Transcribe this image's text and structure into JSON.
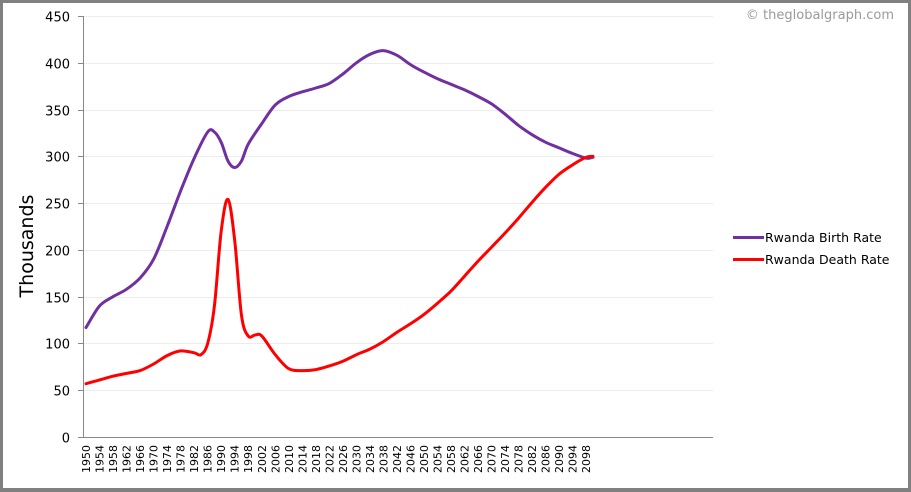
{
  "copyright": "© theglobalgraph.com",
  "chart_data": {
    "type": "line",
    "title": "",
    "xlabel": "",
    "ylabel": "Thousands",
    "ylim": [
      0,
      450
    ],
    "y_ticks": [
      0,
      50,
      100,
      150,
      200,
      250,
      300,
      350,
      400,
      450
    ],
    "x_ticks": [
      "1950",
      "1954",
      "1958",
      "1962",
      "1966",
      "1970",
      "1974",
      "1978",
      "1982",
      "1986",
      "1990",
      "1994",
      "1998",
      "2002",
      "2006",
      "2010",
      "2014",
      "2018",
      "2022",
      "2026",
      "2030",
      "2034",
      "2038",
      "2042",
      "2046",
      "2050",
      "2054",
      "2058",
      "2062",
      "2066",
      "2070",
      "2074",
      "2078",
      "2082",
      "2086",
      "2090",
      "2094",
      "2098"
    ],
    "grid": true,
    "legend_position": "right",
    "series": [
      {
        "name": "Rwanda Birth Rate",
        "color": "#7030A0",
        "x": [
          1950,
          1954,
          1958,
          1962,
          1966,
          1970,
          1974,
          1978,
          1982,
          1986,
          1988,
          1990,
          1992,
          1994,
          1996,
          1998,
          2002,
          2006,
          2010,
          2014,
          2018,
          2022,
          2026,
          2030,
          2034,
          2038,
          2042,
          2046,
          2050,
          2054,
          2058,
          2062,
          2066,
          2070,
          2074,
          2078,
          2082,
          2086,
          2090,
          2094,
          2098,
          2100
        ],
        "values": [
          117,
          140,
          150,
          158,
          170,
          190,
          225,
          263,
          298,
          326,
          326,
          315,
          295,
          288,
          295,
          313,
          335,
          355,
          364,
          369,
          373,
          378,
          388,
          400,
          409,
          413,
          408,
          398,
          390,
          383,
          377,
          371,
          364,
          356,
          345,
          333,
          323,
          315,
          309,
          303,
          298,
          299
        ]
      },
      {
        "name": "Rwanda Death Rate",
        "color": "#FF0000",
        "x": [
          1950,
          1954,
          1958,
          1962,
          1966,
          1970,
          1974,
          1978,
          1982,
          1984,
          1986,
          1988,
          1990,
          1992,
          1994,
          1996,
          1998,
          2000,
          2002,
          2006,
          2010,
          2014,
          2018,
          2022,
          2026,
          2030,
          2034,
          2038,
          2042,
          2046,
          2050,
          2054,
          2058,
          2062,
          2066,
          2070,
          2074,
          2078,
          2082,
          2086,
          2090,
          2094,
          2098,
          2100
        ],
        "values": [
          57,
          61,
          65,
          68,
          71,
          78,
          87,
          92,
          90,
          88,
          100,
          140,
          220,
          254,
          210,
          130,
          108,
          109,
          108,
          88,
          73,
          71,
          72,
          76,
          81,
          88,
          94,
          102,
          112,
          121,
          131,
          143,
          156,
          172,
          188,
          203,
          218,
          234,
          251,
          267,
          281,
          291,
          299,
          300
        ]
      }
    ]
  }
}
